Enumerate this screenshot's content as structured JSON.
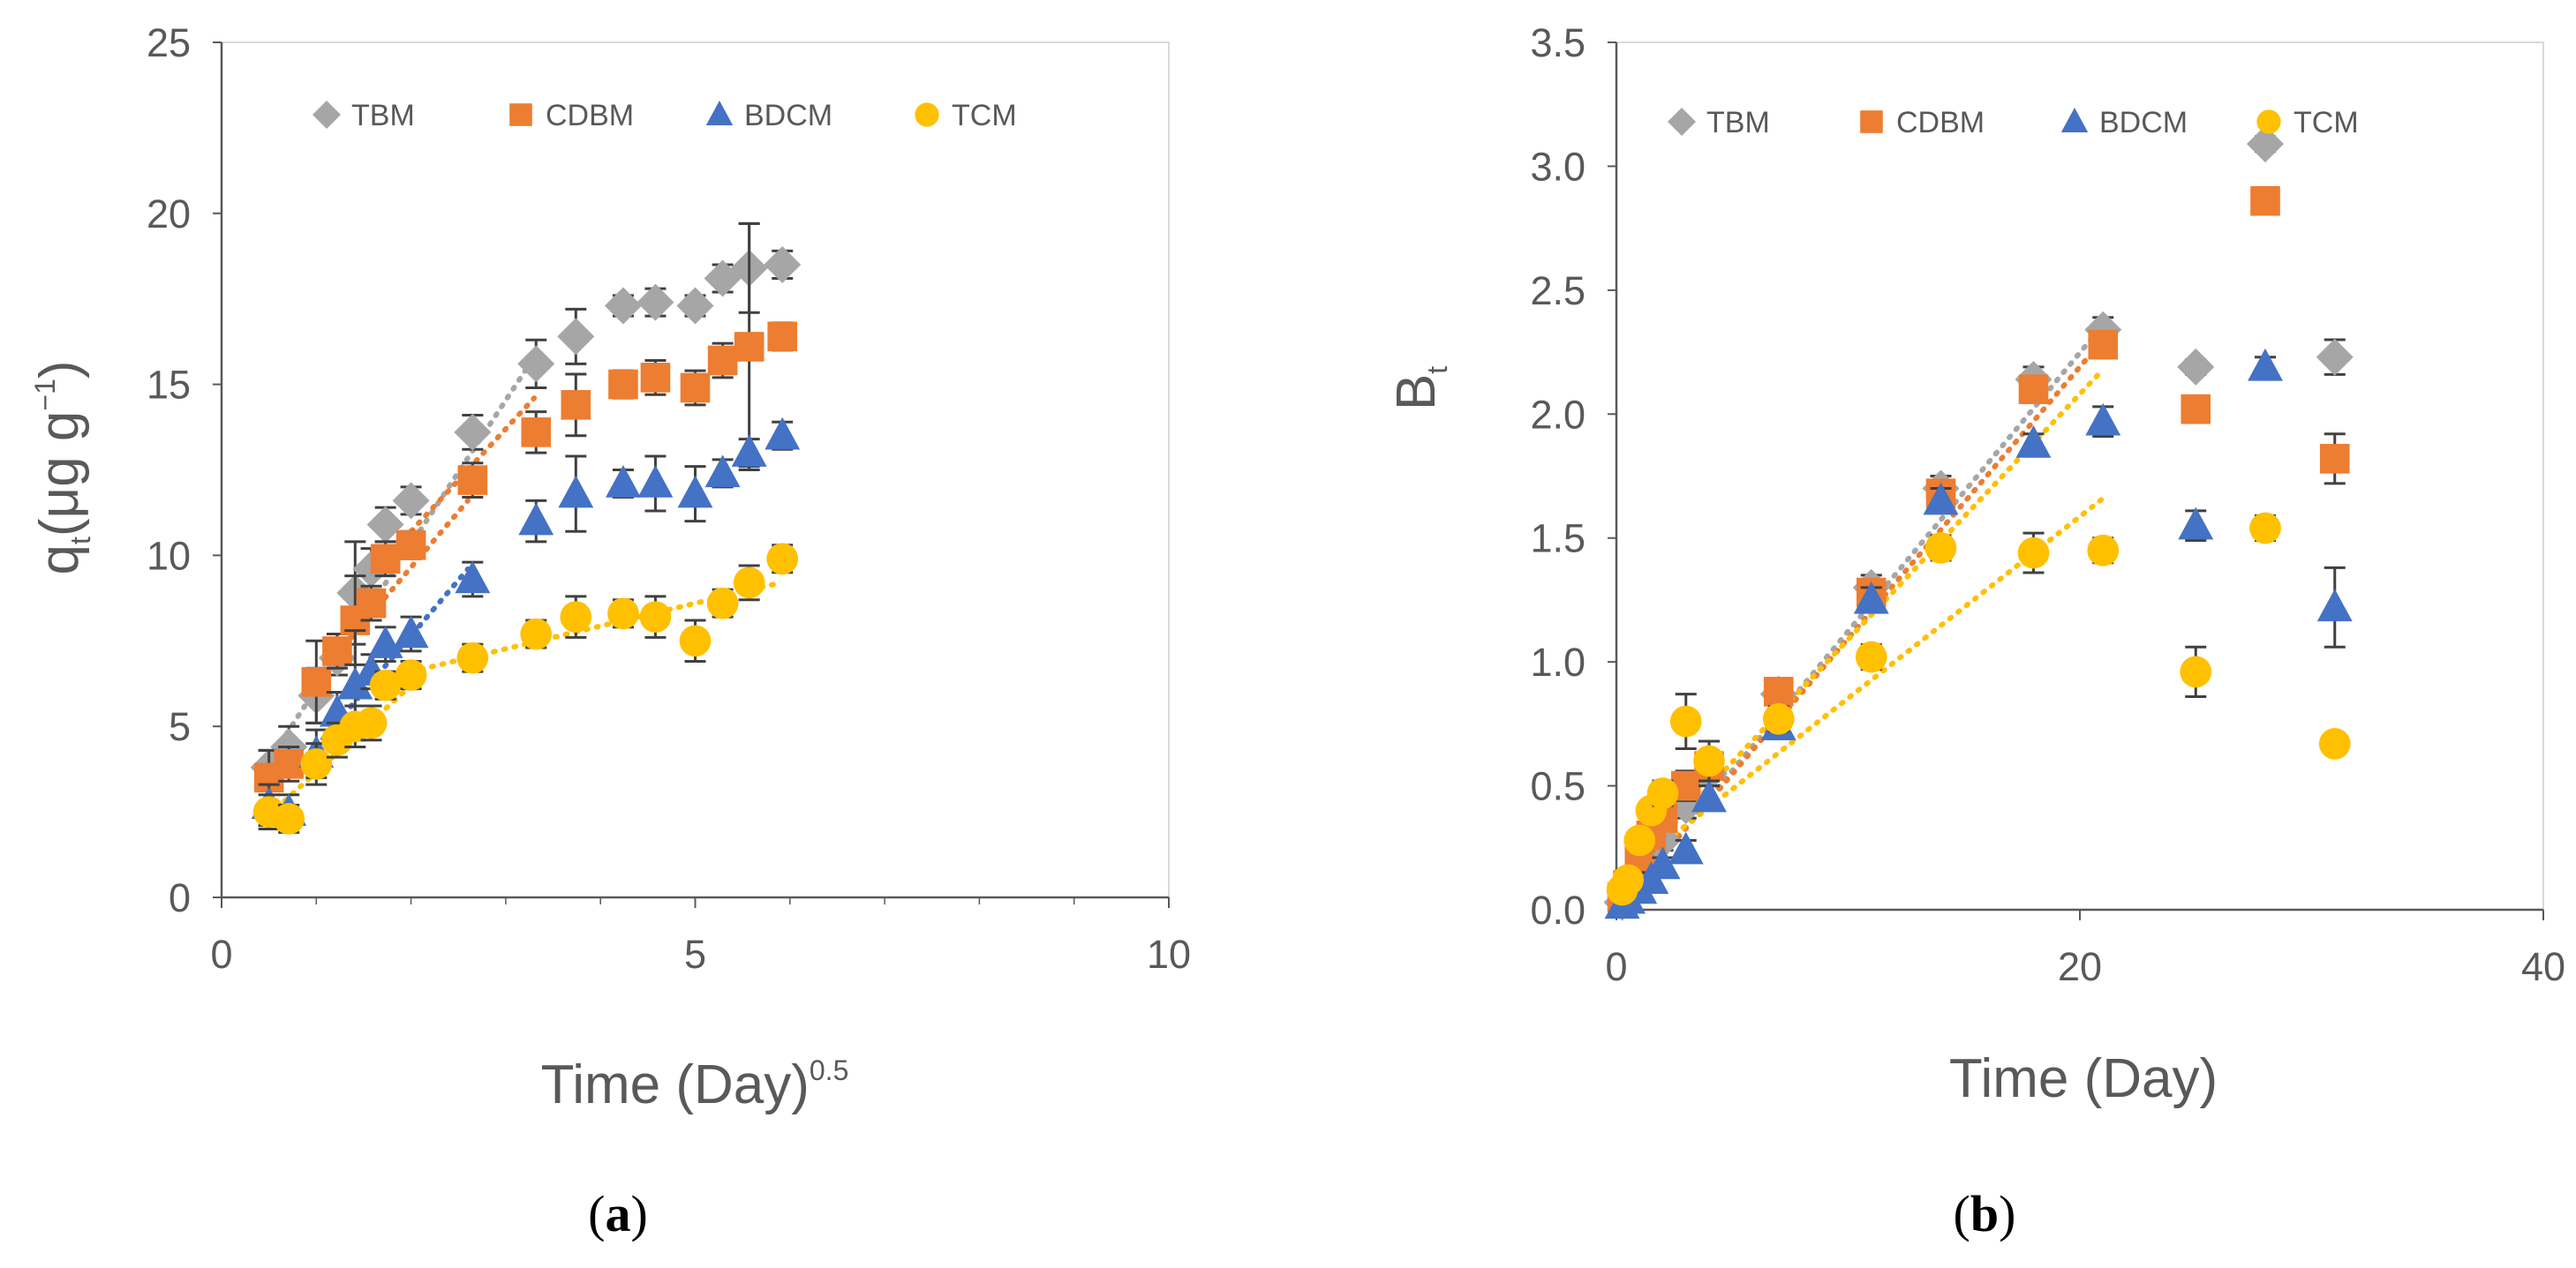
{
  "colors": {
    "TBM": "#a6a6a6",
    "CDBM": "#ed7d31",
    "BDCM": "#4472c4",
    "TCM": "#ffc000",
    "axis": "#595959",
    "errorbar": "#404040"
  },
  "chart_data": [
    {
      "type": "scatter",
      "panel": "a",
      "caption_letter": "a",
      "xlabel_main": "Time (Day)",
      "xlabel_sup": "0.5",
      "ylabel_main": "q",
      "ylabel_sub": "t",
      "ylabel_rest": "(μg g",
      "ylabel_sup": "−1",
      "ylabel_close": ")",
      "xlim": [
        0,
        10
      ],
      "ylim": [
        0,
        25
      ],
      "xticks": [
        "0",
        "5",
        "10"
      ],
      "yticks": [
        "0",
        "5",
        "10",
        "15",
        "20",
        "25"
      ],
      "legend": [
        "TBM",
        "CDBM",
        "BDCM",
        "TCM"
      ],
      "legend_position": "top",
      "series": [
        {
          "name": "TBM",
          "marker": "diamond",
          "x": [
            0.5,
            0.71,
            1.0,
            1.22,
            1.41,
            1.58,
            1.73,
            2.0,
            2.65,
            3.32,
            3.74,
            4.24,
            4.58,
            5.0,
            5.29,
            5.57,
            5.92
          ],
          "y": [
            3.8,
            4.4,
            5.9,
            7.0,
            8.9,
            9.6,
            10.9,
            11.6,
            13.6,
            15.6,
            16.4,
            17.3,
            17.4,
            17.3,
            18.1,
            18.4,
            18.5
          ],
          "err": [
            0.5,
            0.6,
            0.8,
            0.5,
            1.5,
            0.6,
            0.5,
            0.4,
            0.5,
            0.7,
            0.8,
            0.3,
            0.4,
            0.3,
            0.4,
            1.3,
            0.4
          ]
        },
        {
          "name": "CDBM",
          "marker": "square",
          "x": [
            0.5,
            0.71,
            1.0,
            1.22,
            1.41,
            1.58,
            1.73,
            2.0,
            2.65,
            3.32,
            3.74,
            4.24,
            4.58,
            5.0,
            5.29,
            5.57,
            5.92
          ],
          "y": [
            3.5,
            3.9,
            6.3,
            7.2,
            8.1,
            8.6,
            9.9,
            10.3,
            12.2,
            13.6,
            14.4,
            15.0,
            15.2,
            14.9,
            15.7,
            16.1,
            16.4
          ],
          "err": [
            0.8,
            0.5,
            1.2,
            0.5,
            1.3,
            0.5,
            0.5,
            0.4,
            0.5,
            0.6,
            0.9,
            0.4,
            0.5,
            0.5,
            0.5,
            3.6,
            0.4
          ]
        },
        {
          "name": "BDCM",
          "marker": "triangle",
          "x": [
            0.5,
            0.71,
            1.0,
            1.22,
            1.41,
            1.58,
            1.73,
            2.0,
            2.65,
            3.32,
            3.74,
            4.24,
            4.58,
            5.0,
            5.29,
            5.57,
            5.92
          ],
          "y": [
            2.7,
            2.5,
            4.2,
            5.4,
            6.2,
            6.6,
            7.4,
            7.7,
            9.3,
            11.0,
            11.8,
            12.1,
            12.1,
            11.8,
            12.4,
            13.0,
            13.5
          ],
          "err": [
            0.6,
            0.5,
            0.7,
            0.6,
            1.6,
            0.5,
            0.5,
            0.5,
            0.5,
            0.6,
            1.1,
            0.4,
            0.8,
            0.8,
            0.4,
            0.4,
            0.4
          ]
        },
        {
          "name": "TCM",
          "marker": "circle",
          "x": [
            0.5,
            0.71,
            1.0,
            1.22,
            1.41,
            1.58,
            1.73,
            2.0,
            2.65,
            3.32,
            3.74,
            4.24,
            4.58,
            5.0,
            5.29,
            5.57,
            5.92
          ],
          "y": [
            2.5,
            2.3,
            3.9,
            4.6,
            5.0,
            5.1,
            6.2,
            6.5,
            7.0,
            7.7,
            8.2,
            8.3,
            8.2,
            7.5,
            8.6,
            9.2,
            9.9
          ],
          "err": [
            0.5,
            0.4,
            0.6,
            0.5,
            0.6,
            0.5,
            0.4,
            0.4,
            0.4,
            0.4,
            0.6,
            0.4,
            0.6,
            0.6,
            0.4,
            0.5,
            0.4
          ]
        }
      ],
      "trendlines": [
        {
          "name": "TBM",
          "x": [
            0.5,
            3.3
          ],
          "y": [
            4.0,
            15.8
          ]
        },
        {
          "name": "CDBM",
          "x": [
            1.0,
            2.6
          ],
          "y": [
            6.4,
            11.6
          ]
        },
        {
          "name": "CDBM",
          "x": [
            1.7,
            3.3
          ],
          "y": [
            9.8,
            14.6
          ]
        },
        {
          "name": "BDCM",
          "x": [
            1.0,
            2.6
          ],
          "y": [
            4.4,
            9.6
          ]
        },
        {
          "name": "TCM",
          "x": [
            0.5,
            2.0
          ],
          "y": [
            2.4,
            6.2
          ]
        },
        {
          "name": "TCM",
          "x": [
            2.0,
            5.9
          ],
          "y": [
            6.6,
            9.2
          ]
        }
      ]
    },
    {
      "type": "scatter",
      "panel": "b",
      "caption_letter": "b",
      "xlabel_main": "Time (Day)",
      "ylabel_main": "B",
      "ylabel_sub": "t",
      "xlim": [
        0,
        40
      ],
      "ylim": [
        0,
        3.5
      ],
      "xticks": [
        "0",
        "20",
        "40"
      ],
      "yticks": [
        "0.0",
        "0.5",
        "1.0",
        "1.5",
        "2.0",
        "2.5",
        "3.0",
        "3.5"
      ],
      "legend": [
        "TBM",
        "CDBM",
        "BDCM",
        "TCM"
      ],
      "legend_position": "top",
      "series": [
        {
          "name": "TBM",
          "marker": "diamond",
          "x": [
            0.25,
            0.5,
            1,
            1.5,
            2,
            3,
            4,
            7,
            11,
            14,
            18,
            21,
            25,
            28,
            31
          ],
          "y": [
            0.03,
            0.06,
            0.13,
            0.21,
            0.28,
            0.42,
            0.55,
            0.87,
            1.3,
            1.7,
            2.14,
            2.34,
            2.19,
            3.09,
            2.23
          ],
          "err": [
            0.02,
            0.02,
            0.03,
            0.03,
            0.04,
            0.05,
            0.05,
            0.05,
            0.05,
            0.05,
            0.05,
            0.05,
            0.03,
            0.03,
            0.07
          ]
        },
        {
          "name": "CDBM",
          "marker": "square",
          "x": [
            0.25,
            0.5,
            1,
            1.5,
            2,
            3,
            4,
            7,
            11,
            14,
            18,
            21,
            25,
            28,
            31
          ],
          "y": [
            0.05,
            0.1,
            0.2,
            0.3,
            0.37,
            0.5,
            0.58,
            0.88,
            1.28,
            1.68,
            2.1,
            2.28,
            2.02,
            2.86,
            1.82
          ],
          "err": [
            0.02,
            0.03,
            0.03,
            0.04,
            0.05,
            0.06,
            0.05,
            0.05,
            0.05,
            0.05,
            0.05,
            0.05,
            0.03,
            0.03,
            0.1
          ]
        },
        {
          "name": "BDCM",
          "marker": "triangle",
          "x": [
            0.25,
            0.5,
            1,
            1.5,
            2,
            3,
            4,
            7,
            11,
            14,
            18,
            21,
            25,
            28,
            31
          ],
          "y": [
            0.02,
            0.04,
            0.08,
            0.12,
            0.18,
            0.24,
            0.45,
            0.74,
            1.25,
            1.65,
            1.88,
            1.97,
            1.55,
            2.19,
            1.22
          ],
          "err": [
            0.02,
            0.02,
            0.03,
            0.03,
            0.03,
            0.04,
            0.05,
            0.05,
            0.05,
            0.05,
            0.04,
            0.06,
            0.06,
            0.04,
            0.16
          ]
        },
        {
          "name": "TCM",
          "marker": "circle",
          "x": [
            0.25,
            0.5,
            1,
            1.5,
            2,
            3,
            4,
            7,
            11,
            14,
            18,
            21,
            25,
            28,
            31
          ],
          "y": [
            0.08,
            0.12,
            0.28,
            0.4,
            0.47,
            0.76,
            0.6,
            0.77,
            1.02,
            1.46,
            1.44,
            1.45,
            0.96,
            1.54,
            0.67
          ],
          "err": [
            0.03,
            0.03,
            0.04,
            0.04,
            0.05,
            0.11,
            0.08,
            0.05,
            0.05,
            0.05,
            0.08,
            0.05,
            0.1,
            0.05,
            0.04
          ]
        }
      ],
      "trendlines": [
        {
          "name": "TBM",
          "x": [
            0,
            21
          ],
          "y": [
            0.0,
            2.36
          ]
        },
        {
          "name": "CDBM",
          "x": [
            0,
            21
          ],
          "y": [
            0.0,
            2.3
          ]
        },
        {
          "name": "TCM",
          "x": [
            0,
            21
          ],
          "y": [
            0.1,
            2.18
          ]
        },
        {
          "name": "TCM",
          "x": [
            0,
            21
          ],
          "y": [
            0.12,
            1.66
          ]
        }
      ]
    }
  ]
}
